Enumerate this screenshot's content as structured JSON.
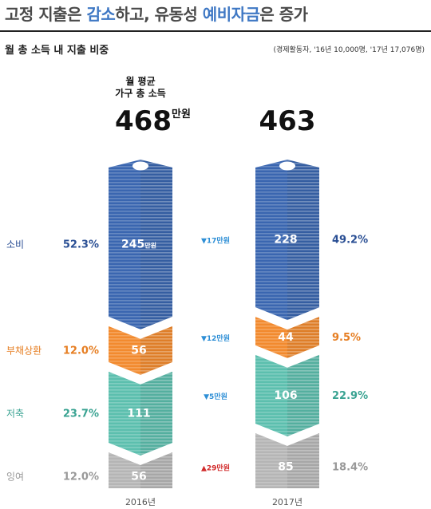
{
  "header": {
    "headline_parts": [
      {
        "text": "고정 지출",
        "highlight": false
      },
      {
        "text": "은 ",
        "highlight": false
      },
      {
        "text": "감소",
        "highlight": true
      },
      {
        "text": "하고, 유동성 ",
        "highlight": false
      },
      {
        "text": "예비자금",
        "highlight": true
      },
      {
        "text": "은 증가",
        "highlight": false
      }
    ],
    "subtitle": "월 총 소득 내 지출 비중",
    "source": "(경제활동자, '16년 10,000명, '17년 17,076명)"
  },
  "chart_data": {
    "type": "bar",
    "layout": "stacked",
    "categories": [
      "2016년",
      "2017년"
    ],
    "income_label": [
      "월 평균",
      "가구 총 소득"
    ],
    "totals": [
      468,
      463
    ],
    "total_unit": "만원",
    "series": [
      {
        "name": "소비",
        "color": "#3a66b0",
        "values": [
          245,
          228
        ],
        "pct": [
          "52.3%",
          "49.2%"
        ],
        "pct_color": "#2a4f94",
        "change": "▼17만원",
        "change_dir": "down"
      },
      {
        "name": "부채상환",
        "color": "#f28a2e",
        "values": [
          56,
          44
        ],
        "pct": [
          "12.0%",
          "9.5%"
        ],
        "pct_color": "#e67e22",
        "change": "▼12만원",
        "change_dir": "down"
      },
      {
        "name": "저축",
        "color": "#5cbfae",
        "values": [
          111,
          106
        ],
        "pct": [
          "23.7%",
          "22.9%"
        ],
        "pct_color": "#3aa392",
        "change": "▼5만원",
        "change_dir": "down"
      },
      {
        "name": "잉여",
        "color": "#b5b5b5",
        "values": [
          56,
          85
        ],
        "pct": [
          "12.0%",
          "18.4%"
        ],
        "pct_color": "#999999",
        "change": "▲29만원",
        "change_dir": "up"
      }
    ],
    "value_unit": "만원",
    "colors": {
      "down": "#2e8fd6",
      "up": "#d12a2a",
      "label_blue": "#3a66b0"
    }
  }
}
